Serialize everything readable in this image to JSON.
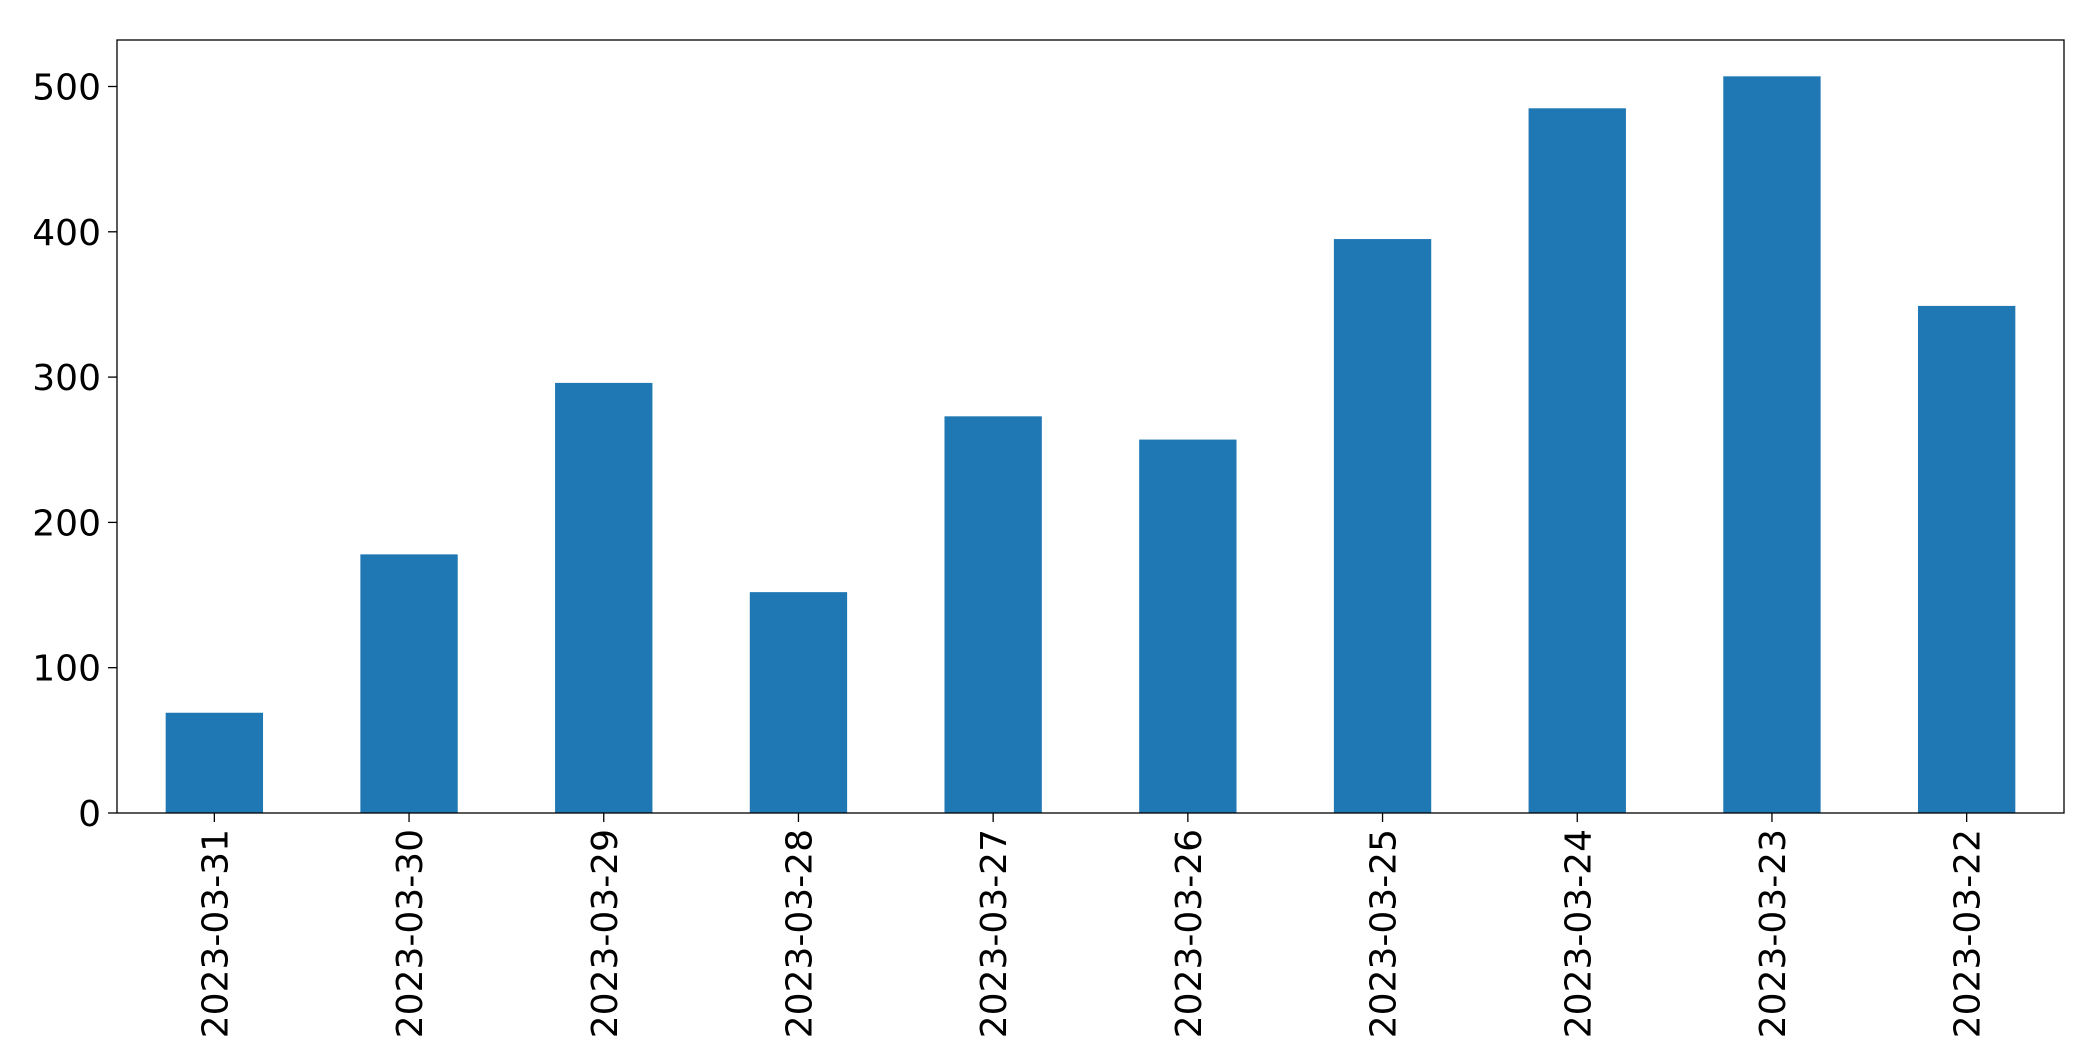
{
  "chart_data": {
    "type": "bar",
    "categories": [
      "2023-03-31",
      "2023-03-30",
      "2023-03-29",
      "2023-03-28",
      "2023-03-27",
      "2023-03-26",
      "2023-03-25",
      "2023-03-24",
      "2023-03-23",
      "2023-03-22"
    ],
    "values": [
      69,
      178,
      296,
      152,
      273,
      257,
      395,
      485,
      507,
      349
    ],
    "color": "#1f77b4",
    "ylim": [
      0,
      532
    ],
    "yticks": [
      0,
      100,
      200,
      300,
      400,
      500
    ],
    "grid": false
  }
}
